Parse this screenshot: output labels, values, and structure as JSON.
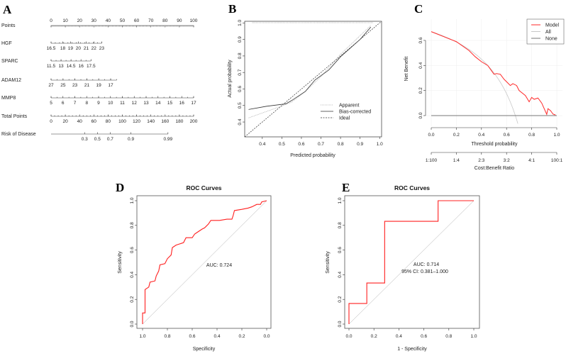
{
  "chart_data": [
    {
      "panel": "A",
      "type": "nomogram",
      "points_scale": {
        "label": "Points",
        "min": 0,
        "max": 100,
        "ticks": [
          0,
          10,
          20,
          30,
          40,
          50,
          60,
          70,
          80,
          90,
          100
        ]
      },
      "variables": [
        {
          "label": "HGF",
          "ticks": [
            {
              "v": "16.5",
              "p": 0
            },
            {
              "v": "18",
              "p": 8.2
            },
            {
              "v": "19",
              "p": 13.6
            },
            {
              "v": "20",
              "p": 19.1
            },
            {
              "v": "21",
              "p": 24.6
            },
            {
              "v": "22",
              "p": 30
            },
            {
              "v": "23",
              "p": 35.5
            }
          ],
          "max_points": 35.5
        },
        {
          "label": "SPARC",
          "ticks": [
            {
              "v": "11.5",
              "p": 0
            },
            {
              "v": "13",
              "p": 7
            },
            {
              "v": "14.5",
              "p": 14
            },
            {
              "v": "16",
              "p": 21
            },
            {
              "v": "17.5",
              "p": 28
            }
          ],
          "max_points": 28
        },
        {
          "label": "ADAM12",
          "ticks": [
            {
              "v": "27",
              "p": 0
            },
            {
              "v": "25",
              "p": 8.4
            },
            {
              "v": "23",
              "p": 16.7
            },
            {
              "v": "21",
              "p": 25.1
            },
            {
              "v": "19",
              "p": 33.4
            },
            {
              "v": "17",
              "p": 41.8
            }
          ],
          "max_points": 46
        },
        {
          "label": "MMP8",
          "ticks": [
            {
              "v": "5",
              "p": 0
            },
            {
              "v": "6",
              "p": 8.33
            },
            {
              "v": "7",
              "p": 16.67
            },
            {
              "v": "8",
              "p": 25
            },
            {
              "v": "9",
              "p": 33.33
            },
            {
              "v": "10",
              "p": 41.67
            },
            {
              "v": "11",
              "p": 50
            },
            {
              "v": "12",
              "p": 58.33
            },
            {
              "v": "13",
              "p": 66.67
            },
            {
              "v": "14",
              "p": 75
            },
            {
              "v": "15",
              "p": 83.33
            },
            {
              "v": "16",
              "p": 91.67
            },
            {
              "v": "17",
              "p": 100
            }
          ],
          "max_points": 100
        }
      ],
      "total_points": {
        "label": "Total Points",
        "min": 0,
        "max": 200,
        "ticks": [
          0,
          20,
          40,
          60,
          80,
          100,
          120,
          140,
          160,
          180,
          200
        ]
      },
      "risk": {
        "label": "Risk of Disease",
        "ticks": [
          {
            "v": "0.3",
            "total": 47
          },
          {
            "v": "0.5",
            "total": 65
          },
          {
            "v": "0.7",
            "total": 83
          },
          {
            "v": "0.9",
            "total": 112
          },
          {
            "v": "0.99",
            "total": 164
          }
        ]
      }
    },
    {
      "panel": "B",
      "type": "line",
      "title": "",
      "xlabel": "Predicted probability",
      "ylabel": "Actual probability",
      "xlim": [
        0.31,
        1.01
      ],
      "ylim": [
        0.31,
        1.01
      ],
      "xticks": [
        "0.4",
        "0.5",
        "0.6",
        "0.7",
        "0.8",
        "0.9",
        "1.0"
      ],
      "yticks": [
        "0.4",
        "0.5",
        "0.6",
        "0.7",
        "0.8",
        "0.9",
        "1.0"
      ],
      "legend": {
        "placement": "bottom-right",
        "entries": [
          "Apparent",
          "Bias-corrected",
          "Ideal"
        ]
      },
      "series": [
        {
          "name": "Apparent",
          "color": "#aaaaaa",
          "points": [
            [
              0.33,
              0.425
            ],
            [
              0.5,
              0.497
            ],
            [
              0.55,
              0.52
            ],
            [
              0.62,
              0.585
            ],
            [
              0.7,
              0.675
            ],
            [
              0.8,
              0.81
            ],
            [
              0.955,
              0.985
            ]
          ]
        },
        {
          "name": "Bias-corrected",
          "color": "#333333",
          "points": [
            [
              0.33,
              0.476
            ],
            [
              0.42,
              0.495
            ],
            [
              0.52,
              0.51
            ],
            [
              0.55,
              0.53
            ],
            [
              0.62,
              0.585
            ],
            [
              0.67,
              0.655
            ],
            [
              0.74,
              0.715
            ],
            [
              0.8,
              0.795
            ],
            [
              0.9,
              0.9
            ],
            [
              0.955,
              0.975
            ]
          ]
        },
        {
          "name": "Ideal",
          "color": "#333333",
          "points": [
            [
              0.31,
              0.31
            ],
            [
              1.01,
              1.01
            ]
          ]
        }
      ]
    },
    {
      "panel": "C",
      "type": "line",
      "xlabel": "Threshold probability",
      "ylabel": "Net Benefit",
      "xlim": [
        0,
        1
      ],
      "ylim": [
        -0.09,
        0.72
      ],
      "xticks": [
        "0.0",
        "0.2",
        "0.4",
        "0.6",
        "0.8",
        "1.0"
      ],
      "yticks": [
        "0.0",
        "0.2",
        "0.4",
        "0.6"
      ],
      "secondary_axis": {
        "label": "Cost:Benefit Ratio",
        "ticks": [
          "1:100",
          "1:4",
          "2:3",
          "3:2",
          "4:1",
          "100:1"
        ]
      },
      "legend": {
        "placement": "top-right",
        "entries": [
          "Model",
          "All",
          "None"
        ]
      },
      "prevalence": 0.67,
      "series": [
        {
          "name": "Model",
          "color": "#ff2a2a",
          "points": [
            [
              0,
              0.67
            ],
            [
              0.1,
              0.63
            ],
            [
              0.2,
              0.59
            ],
            [
              0.3,
              0.52
            ],
            [
              0.35,
              0.47
            ],
            [
              0.4,
              0.43
            ],
            [
              0.45,
              0.4
            ],
            [
              0.5,
              0.33
            ],
            [
              0.52,
              0.335
            ],
            [
              0.55,
              0.33
            ],
            [
              0.58,
              0.29
            ],
            [
              0.6,
              0.27
            ],
            [
              0.63,
              0.24
            ],
            [
              0.65,
              0.255
            ],
            [
              0.68,
              0.24
            ],
            [
              0.7,
              0.2
            ],
            [
              0.75,
              0.16
            ],
            [
              0.78,
              0.11
            ],
            [
              0.8,
              0.145
            ],
            [
              0.82,
              0.13
            ],
            [
              0.85,
              0.14
            ],
            [
              0.88,
              0.1
            ],
            [
              0.92,
              0.01
            ],
            [
              0.93,
              0.055
            ],
            [
              0.95,
              0.04
            ],
            [
              0.97,
              0.012
            ],
            [
              0.99,
              0.005
            ]
          ]
        },
        {
          "name": "All",
          "color": "#c8c8c8"
        },
        {
          "name": "None",
          "color": "#777777",
          "points": [
            [
              0,
              0
            ],
            [
              1,
              0
            ]
          ]
        }
      ]
    },
    {
      "panel": "D",
      "type": "line",
      "title": "ROC Curves",
      "xlabel": "Specificity",
      "ylabel": "Sensitivity",
      "xlim": [
        1,
        0
      ],
      "ylim": [
        0,
        1
      ],
      "xticks": [
        "1.0",
        "0.8",
        "0.6",
        "0.4",
        "0.2",
        "0.0"
      ],
      "yticks": [
        "0.0",
        "0.2",
        "0.4",
        "0.6",
        "0.8",
        "1.0"
      ],
      "annotation": "AUC: 0.724",
      "auc": 0.724,
      "series": [
        {
          "name": "ROC",
          "color": "#ff2020",
          "points": [
            [
              1,
              0
            ],
            [
              1,
              0.09
            ],
            [
              0.98,
              0.09
            ],
            [
              0.98,
              0.28
            ],
            [
              0.95,
              0.3
            ],
            [
              0.94,
              0.34
            ],
            [
              0.9,
              0.35
            ],
            [
              0.89,
              0.39
            ],
            [
              0.87,
              0.43
            ],
            [
              0.86,
              0.48
            ],
            [
              0.82,
              0.49
            ],
            [
              0.8,
              0.53
            ],
            [
              0.77,
              0.56
            ],
            [
              0.76,
              0.62
            ],
            [
              0.73,
              0.64
            ],
            [
              0.7,
              0.65
            ],
            [
              0.67,
              0.66
            ],
            [
              0.65,
              0.7
            ],
            [
              0.6,
              0.7
            ],
            [
              0.58,
              0.73
            ],
            [
              0.55,
              0.75
            ],
            [
              0.52,
              0.77
            ],
            [
              0.5,
              0.78
            ],
            [
              0.47,
              0.81
            ],
            [
              0.45,
              0.84
            ],
            [
              0.38,
              0.84
            ],
            [
              0.32,
              0.85
            ],
            [
              0.28,
              0.85
            ],
            [
              0.27,
              0.88
            ],
            [
              0.26,
              0.92
            ],
            [
              0.2,
              0.93
            ],
            [
              0.15,
              0.94
            ],
            [
              0.12,
              0.95
            ],
            [
              0.08,
              0.97
            ],
            [
              0.05,
              0.97
            ],
            [
              0.04,
              0.99
            ],
            [
              0,
              1
            ]
          ]
        }
      ]
    },
    {
      "panel": "E",
      "type": "line",
      "title": "ROC Curves",
      "xlabel": "1 - Specificity",
      "ylabel": "Sensitivity",
      "xlim": [
        0,
        1
      ],
      "ylim": [
        0,
        1
      ],
      "xticks": [
        "0.0",
        "0.2",
        "0.4",
        "0.6",
        "0.8",
        "1.0"
      ],
      "yticks": [
        "0.0",
        "0.2",
        "0.4",
        "0.6",
        "0.8",
        "1.0"
      ],
      "annotation": [
        "AUC: 0.714",
        "95% CI: 0.381–1.000"
      ],
      "auc": 0.714,
      "series": [
        {
          "name": "ROC",
          "color": "#ff2020",
          "points": [
            [
              0,
              0
            ],
            [
              0,
              0.167
            ],
            [
              0.143,
              0.167
            ],
            [
              0.143,
              0.333
            ],
            [
              0.286,
              0.333
            ],
            [
              0.286,
              0.833
            ],
            [
              0.714,
              0.833
            ],
            [
              0.714,
              1
            ],
            [
              1,
              1
            ]
          ]
        }
      ]
    }
  ],
  "panel_labels": [
    "A",
    "B",
    "C",
    "D",
    "E"
  ]
}
